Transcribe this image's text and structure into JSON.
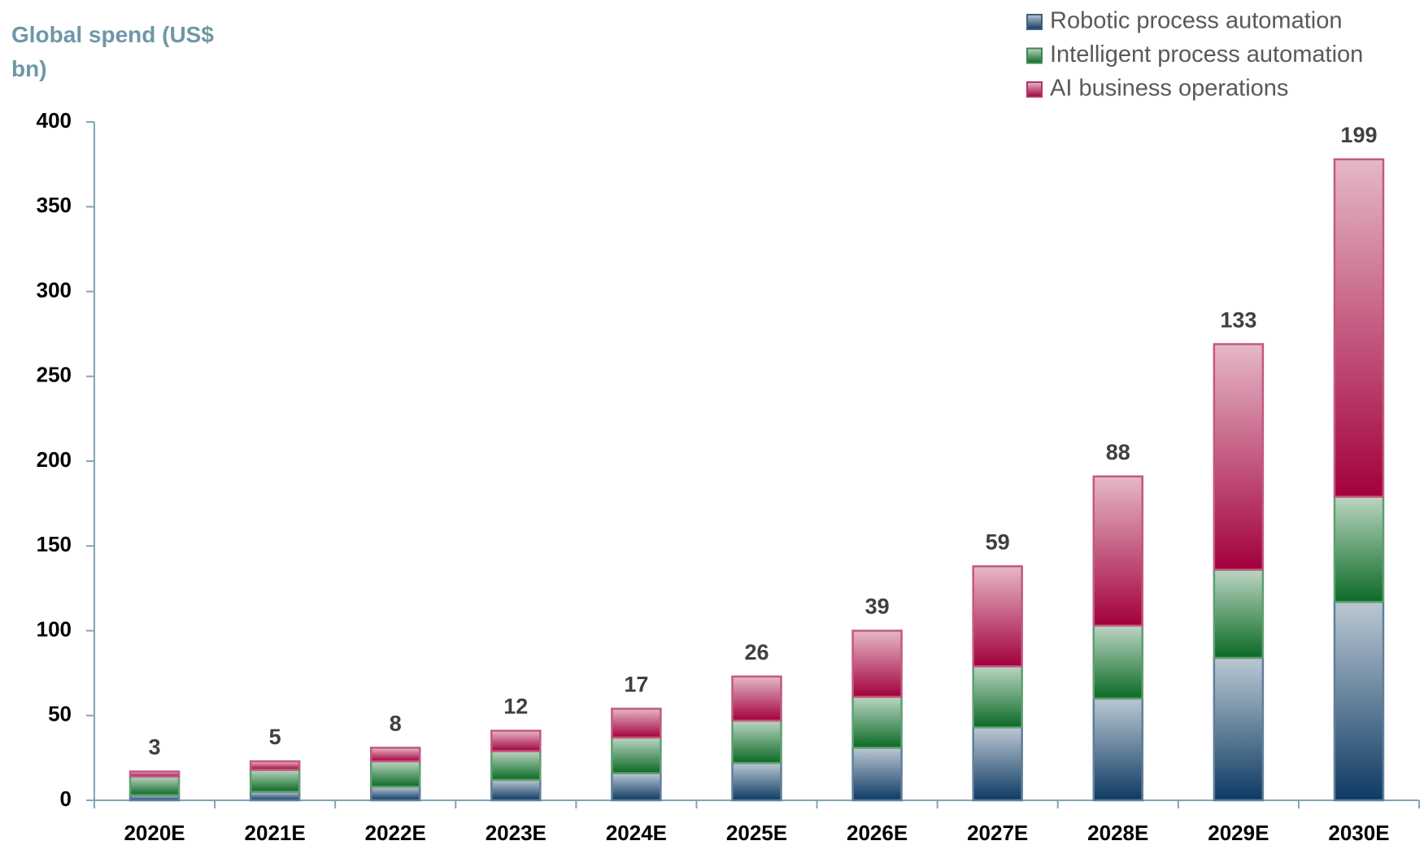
{
  "chart_data": {
    "type": "stacked_bar",
    "title": "Global spend (US$ bn)",
    "categories": [
      "2020E",
      "2021E",
      "2022E",
      "2023E",
      "2024E",
      "2025E",
      "2026E",
      "2027E",
      "2028E",
      "2029E",
      "2030E"
    ],
    "series": [
      {
        "name": "Robotic process automation",
        "color": "#0d3a63",
        "values": [
          3,
          5,
          8,
          12,
          16,
          22,
          31,
          43,
          60,
          84,
          117
        ]
      },
      {
        "name": "Intelligent process automation",
        "color": "#0b6a26",
        "values": [
          11,
          13,
          15,
          17,
          21,
          25,
          30,
          36,
          43,
          52,
          62
        ]
      },
      {
        "name": "AI business operations",
        "color": "#a3003c",
        "values": [
          3,
          5,
          8,
          12,
          17,
          26,
          39,
          59,
          88,
          133,
          199
        ]
      }
    ],
    "ylim": [
      0,
      400
    ],
    "yticks": [
      0,
      50,
      100,
      150,
      200,
      250,
      300,
      350,
      400
    ],
    "grid": false,
    "legend": "top-right",
    "labeled_series": 2
  }
}
